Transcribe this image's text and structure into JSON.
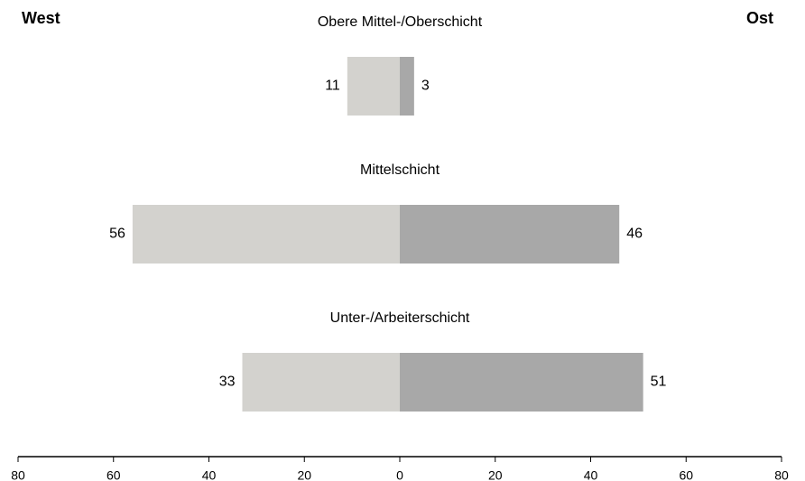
{
  "chart_data": {
    "type": "diverging_bar",
    "categories": [
      "Obere Mittel-/Oberschicht",
      "Mittelschicht",
      "Unter-/Arbeiterschicht"
    ],
    "series": [
      {
        "name": "West",
        "color": "#d3d2ce",
        "values": [
          11,
          56,
          33
        ]
      },
      {
        "name": "Ost",
        "color": "#a8a8a8",
        "values": [
          3,
          46,
          51
        ]
      }
    ],
    "xlim": [
      -80,
      80
    ],
    "xticks": [
      {
        "value": -80,
        "label": "80"
      },
      {
        "value": -60,
        "label": "60"
      },
      {
        "value": -40,
        "label": "40"
      },
      {
        "value": -20,
        "label": "20"
      },
      0,
      20,
      40,
      60,
      80
    ]
  }
}
